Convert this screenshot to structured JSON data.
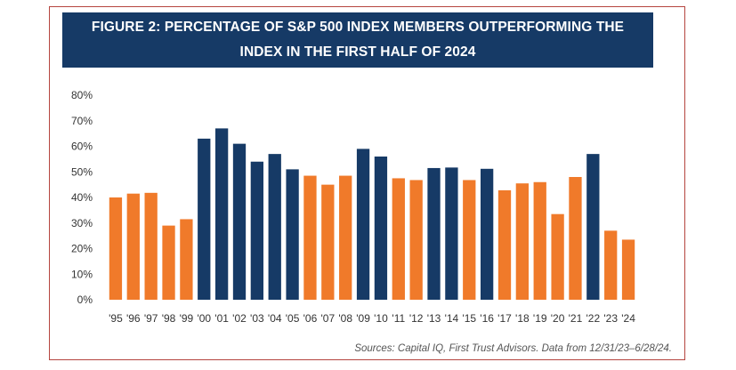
{
  "title": "FIGURE 2: PERCENTAGE OF S&P 500 INDEX MEMBERS OUTPERFORMING THE INDEX IN THE FIRST HALF OF 2024",
  "source": "Sources: Capital IQ, First Trust Advisors. Data from 12/31/23–6/28/24.",
  "colors": {
    "orange": "#f07a2a",
    "navy": "#163a66",
    "frame": "#b5453f"
  },
  "chart_data": {
    "type": "bar",
    "title": "FIGURE 2: PERCENTAGE OF S&P 500 INDEX MEMBERS OUTPERFORMING THE INDEX IN THE FIRST HALF OF 2024",
    "xlabel": "",
    "ylabel": "",
    "ylim": [
      0,
      80
    ],
    "yticks": [
      0,
      10,
      20,
      30,
      40,
      50,
      60,
      70,
      80
    ],
    "ytick_labels": [
      "0%",
      "10%",
      "20%",
      "30%",
      "40%",
      "50%",
      "60%",
      "70%",
      "80%"
    ],
    "categories": [
      "'95",
      "'96",
      "'97",
      "'98",
      "'99",
      "'00",
      "'01",
      "'02",
      "'03",
      "'04",
      "'05",
      "'06",
      "'07",
      "'08",
      "'09",
      "'10",
      "'11",
      "'12",
      "'13",
      "'14",
      "'15",
      "'16",
      "'17",
      "'18",
      "'19",
      "'20",
      "'21",
      "'22",
      "'23",
      "'24"
    ],
    "values": [
      40,
      41.5,
      41.8,
      29,
      31.5,
      63,
      67,
      61,
      54,
      57,
      51,
      48.5,
      45,
      48.5,
      59,
      56,
      47.5,
      46.8,
      51.5,
      51.7,
      46.8,
      51.2,
      42.8,
      45.5,
      46,
      33.5,
      48,
      57,
      27,
      23.5
    ],
    "bar_colors": [
      "orange",
      "orange",
      "orange",
      "orange",
      "orange",
      "navy",
      "navy",
      "navy",
      "navy",
      "navy",
      "navy",
      "orange",
      "orange",
      "orange",
      "navy",
      "navy",
      "orange",
      "orange",
      "navy",
      "navy",
      "orange",
      "navy",
      "orange",
      "orange",
      "orange",
      "orange",
      "orange",
      "navy",
      "orange",
      "orange"
    ],
    "grid": false,
    "legend": "none"
  }
}
